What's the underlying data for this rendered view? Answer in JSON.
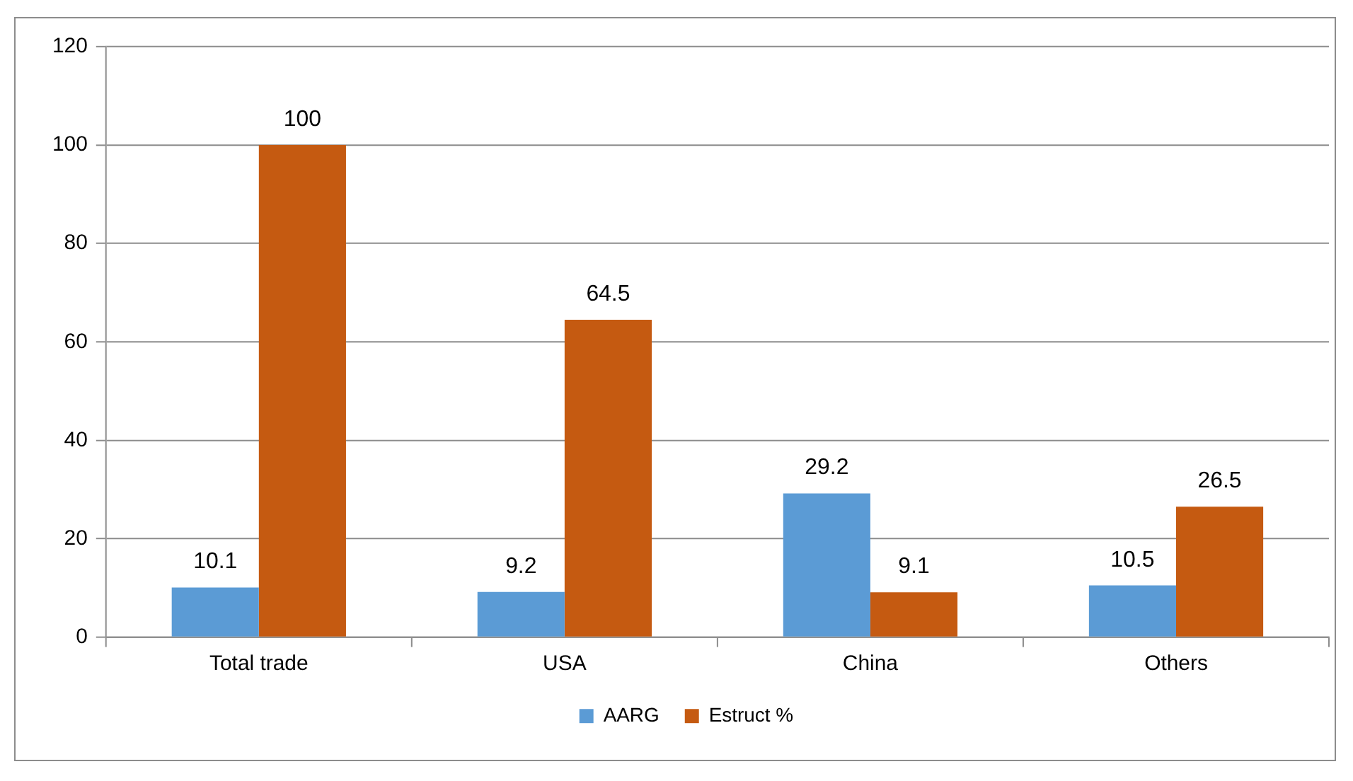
{
  "chart_data": {
    "type": "bar",
    "categories": [
      "Total trade",
      "USA",
      "China",
      "Others"
    ],
    "series": [
      {
        "name": "AARG",
        "color": "#5b9bd5",
        "values": [
          10.1,
          9.2,
          29.2,
          10.5
        ]
      },
      {
        "name": "Estruct %",
        "color": "#c55a11",
        "values": [
          100,
          64.5,
          9.1,
          26.5
        ]
      }
    ],
    "ylim": [
      0,
      120
    ],
    "yticks": [
      0,
      20,
      40,
      60,
      80,
      100,
      120
    ],
    "grid": "y",
    "legend": "bottom",
    "data_labels": true
  }
}
